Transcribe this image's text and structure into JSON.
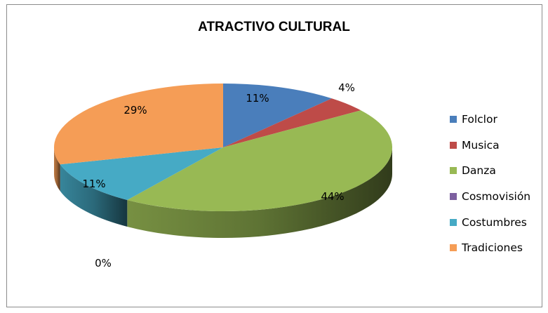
{
  "chart_data": {
    "type": "pie",
    "title": "ATRACTIVO CULTURAL",
    "categories": [
      "Folclor",
      "Musica",
      "Danza",
      "Cosmovisión",
      "Costumbres",
      "Tradiciones"
    ],
    "values": [
      11,
      4,
      44,
      0,
      11,
      29
    ],
    "labels": [
      "11%",
      "4%",
      "44%",
      "0%",
      "11%",
      "29%"
    ],
    "colors": [
      "#4a7ebb",
      "#be4b48",
      "#98b954",
      "#7d60a0",
      "#46aac5",
      "#f59d56"
    ],
    "legend_position": "right",
    "style": "3d"
  }
}
